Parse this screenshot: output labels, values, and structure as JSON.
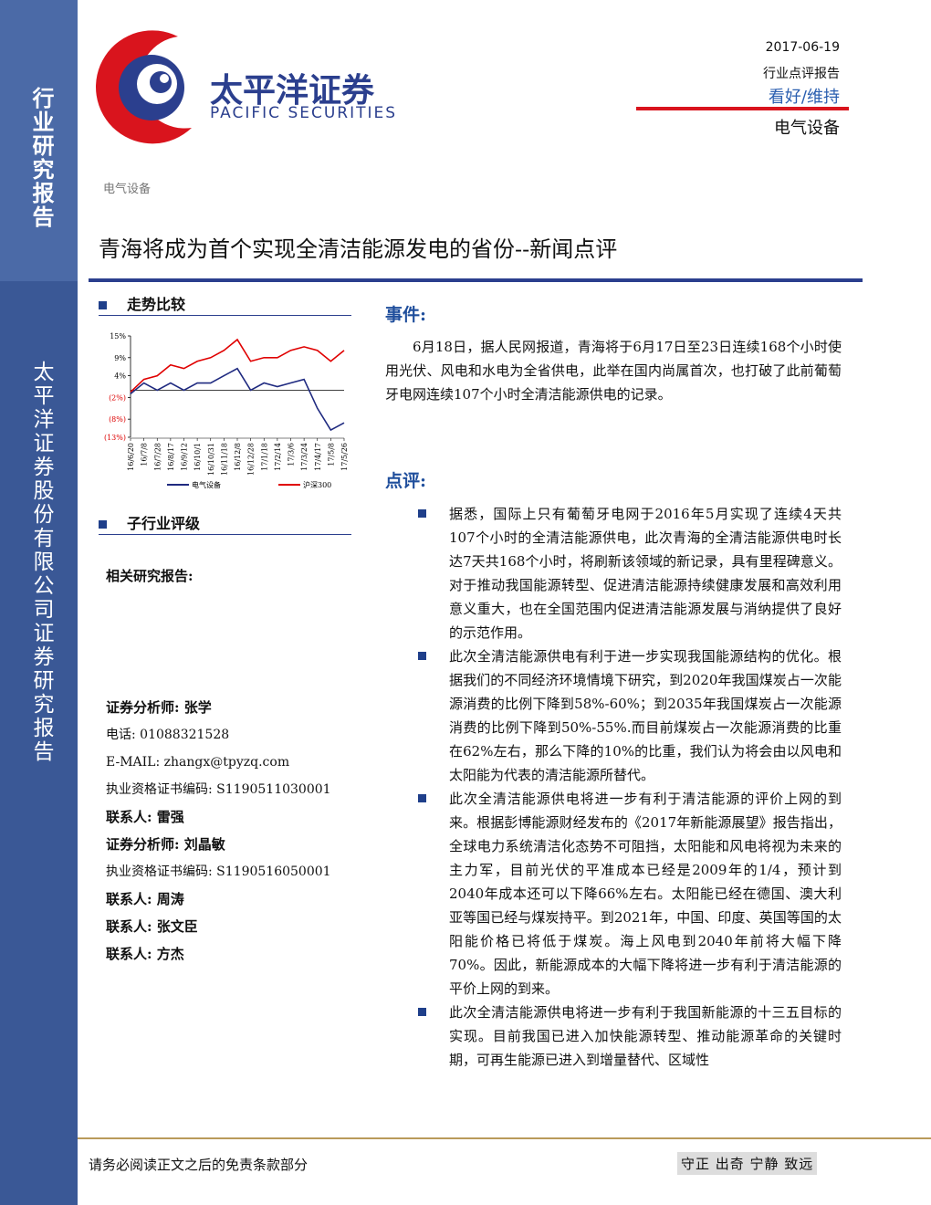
{
  "sidebar": {
    "top_label": "行业研究报告",
    "bottom_label": "太平洋证券股份有限公司证券研究报告"
  },
  "header": {
    "logo_cn": "太平洋证券",
    "logo_en": "PACIFIC SECURITIES",
    "date": "2017-06-19",
    "report_type": "行业点评报告",
    "rating": "看好/维持",
    "sector": "电气设备"
  },
  "category": "电气设备",
  "title": "青海将成为首个实现全清洁能源发电的省份--新闻点评",
  "left": {
    "trend_heading": "走势比较",
    "chart_data": {
      "type": "line",
      "categories": [
        "16/6/20",
        "16/7/8",
        "16/7/28",
        "16/8/17",
        "16/9/12",
        "16/10/1",
        "16/10/31",
        "16/11/18",
        "16/12/8",
        "16/12/28",
        "17/1/18",
        "17/2/14",
        "17/3/6",
        "17/3/24",
        "17/4/17",
        "17/5/8",
        "17/5/26"
      ],
      "series": [
        {
          "name": "电气设备",
          "color": "#1f2a80",
          "values": [
            -1,
            2,
            0,
            2,
            0,
            2,
            2,
            4,
            6,
            0,
            2,
            1,
            2,
            3,
            -5,
            -11,
            -9
          ]
        },
        {
          "name": "沪深300",
          "color": "#e00000",
          "values": [
            -0.5,
            3,
            4,
            7,
            6,
            8,
            9,
            11,
            14,
            8,
            9,
            9,
            11,
            12,
            11,
            8,
            11
          ]
        }
      ],
      "ylim": [
        -13,
        15
      ],
      "yticks": [
        {
          "value": 15,
          "label": "15%"
        },
        {
          "value": 9,
          "label": "9%"
        },
        {
          "value": 4,
          "label": "4%"
        },
        {
          "value": -2,
          "label": "(2%)"
        },
        {
          "value": -8,
          "label": "(8%)"
        },
        {
          "value": -13,
          "label": "(13%)"
        }
      ]
    },
    "sub_rating_heading": "子行业评级",
    "related_heading": "相关研究报告:",
    "contacts": [
      "证券分析师: 张学",
      "电话: 01088321528",
      "E-MAIL: zhangx@tpyzq.com",
      "执业资格证书编码: S1190511030001",
      "联系人: 雷强",
      "证券分析师: 刘晶敏",
      "执业资格证书编码: S1190516050001",
      "联系人: 周涛",
      "联系人: 张文臣",
      "联系人: 方杰"
    ]
  },
  "right": {
    "event_heading": "事件:",
    "event_text": "6月18日，据人民网报道，青海将于6月17日至23日连续168个小时使用光伏、风电和水电为全省供电，此举在国内尚属首次，也打破了此前葡萄牙电网连续107个小时全清洁能源供电的记录。",
    "comment_heading": "点评:",
    "comments": [
      "据悉，国际上只有葡萄牙电网于2016年5月实现了连续4天共107个小时的全清洁能源供电，此次青海的全清洁能源供电时长达7天共168个小时，将刷新该领域的新记录，具有里程碑意义。对于推动我国能源转型、促进清洁能源持续健康发展和高效利用意义重大，也在全国范围内促进清洁能源发展与消纳提供了良好的示范作用。",
      "此次全清洁能源供电有利于进一步实现我国能源结构的优化。根据我们的不同经济环境情境下研究，到2020年我国煤炭占一次能源消费的比例下降到58%-60%；到2035年我国煤炭占一次能源消费的比例下降到50%-55%.而目前煤炭占一次能源消费的比重在62%左右，那么下降的10%的比重，我们认为将会由以风电和太阳能为代表的清洁能源所替代。",
      "此次全清洁能源供电将进一步有利于清洁能源的评价上网的到来。根据彭博能源财经发布的《2017年新能源展望》报告指出，全球电力系统清洁化态势不可阻挡，太阳能和风电将视为未来的主力军，目前光伏的平准成本已经是2009年的1/4，预计到2040年成本还可以下降66%左右。太阳能已经在德国、澳大利亚等国已经与煤炭持平。到2021年，中国、印度、英国等国的太阳能价格已将低于煤炭。海上风电到2040年前将大幅下降70%。因此，新能源成本的大幅下降将进一步有利于清洁能源的平价上网的到来。",
      "此次全清洁能源供电将进一步有利于我国新能源的十三五目标的实现。目前我国已进入加快能源转型、推动能源革命的关键时期，可再生能源已进入到增量替代、区域性"
    ]
  },
  "footer": {
    "disclaimer": "请务必阅读正文之后的免责条款部分",
    "motto": "守正 出奇 宁静 致远"
  }
}
